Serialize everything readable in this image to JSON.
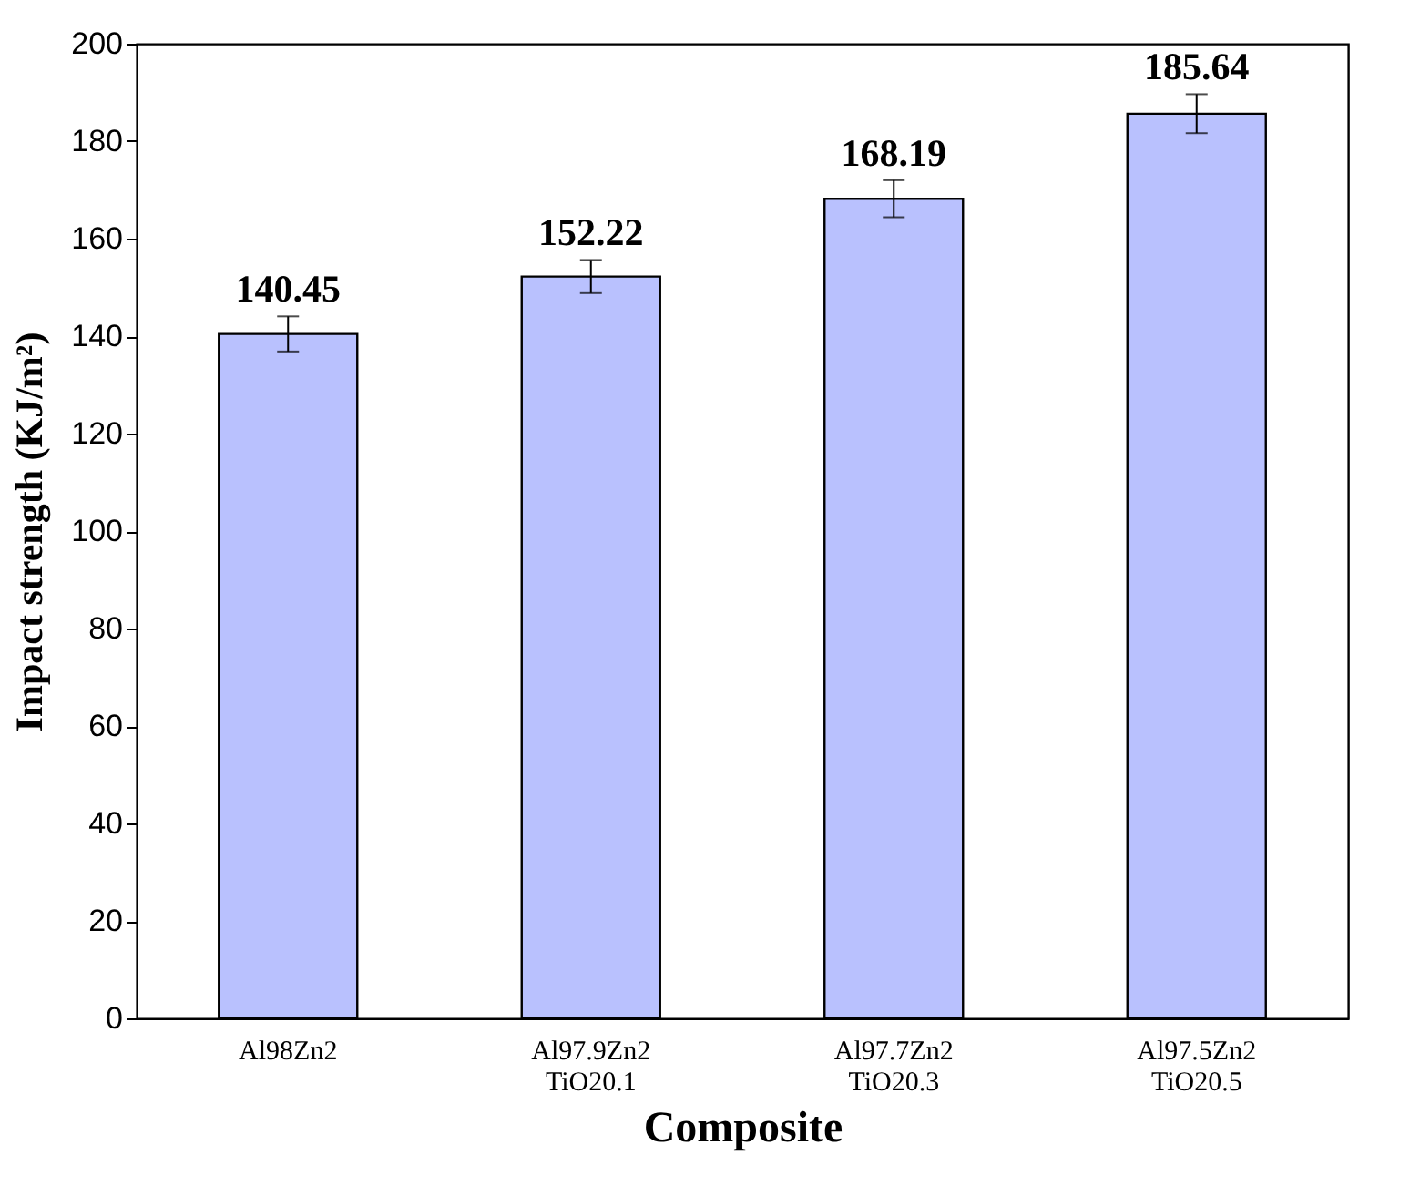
{
  "chart_data": {
    "type": "bar",
    "xlabel": "Composite",
    "ylabel": "Impact strength (KJ/m²)",
    "categories": [
      "Al98Zn2",
      "Al97.9Zn2 TiO20.1",
      "Al97.7Zn2 TiO20.3",
      "Al97.5Zn2 TiO20.5"
    ],
    "values": [
      140.45,
      152.22,
      168.19,
      185.64
    ],
    "errors": [
      3.6,
      3.4,
      3.8,
      4
    ],
    "color": "#b9c1fe",
    "ylim": [
      0,
      200
    ],
    "yticks": [
      0,
      20,
      40,
      60,
      80,
      100,
      120,
      140,
      160,
      180,
      200
    ],
    "data_labels": true,
    "grid": false
  }
}
